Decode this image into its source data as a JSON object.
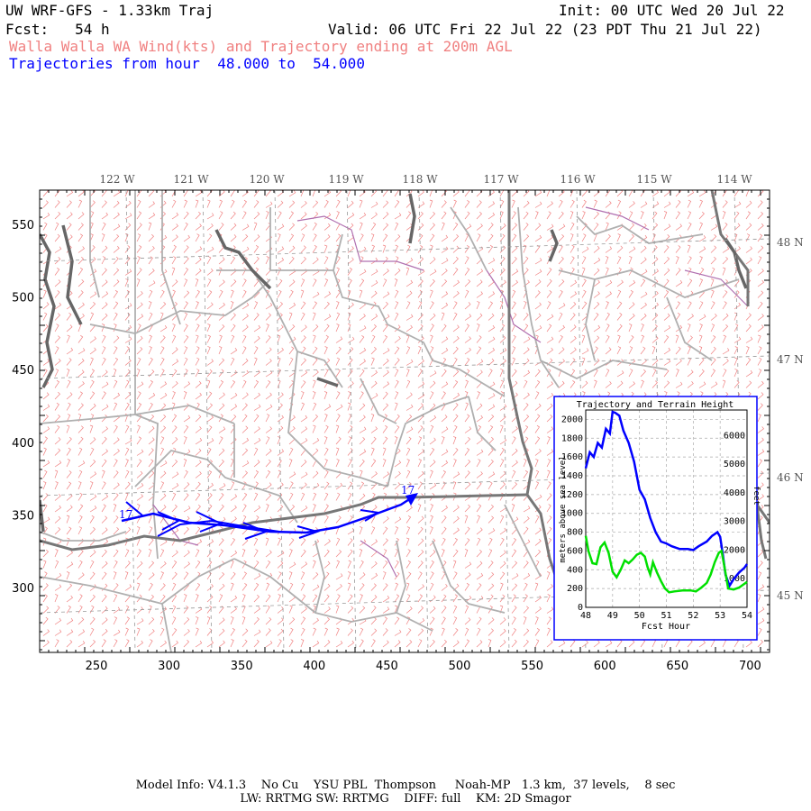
{
  "header": {
    "model_title": "UW WRF-GFS - 1.33km Traj",
    "init": "Init: 00 UTC Wed 20 Jul 22",
    "fcst": "Fcst:   54 h",
    "valid": "Valid: 06 UTC Fri 22 Jul 22 (23 PDT Thu 21 Jul 22)",
    "field_title": "Walla Walla WA Wind(kts) and Trajectory ending at 200m AGL",
    "traj_range": "Trajectories from hour  48.000 to  54.000"
  },
  "map": {
    "lon_labels": [
      "122 W",
      "121 W",
      "120 W",
      "119 W",
      "118 W",
      "117 W",
      "116 W",
      "115 W",
      "114 W"
    ],
    "lat_labels": [
      "48 N",
      "47 N",
      "46 N",
      "45 N"
    ],
    "x_ticks": [
      "250",
      "300",
      "350",
      "400",
      "450",
      "500",
      "550",
      "600",
      "650",
      "700"
    ],
    "y_ticks": [
      "550",
      "500",
      "450",
      "400",
      "350",
      "300"
    ],
    "traj_labels": [
      "17",
      "17"
    ],
    "colors": {
      "barbs": "#f08080",
      "traj": "#0000ff",
      "borders": "#777777",
      "counties": "#b0b0b0",
      "water": "#666666",
      "rivers": "#b070b0"
    }
  },
  "inset": {
    "title": "Trajectory and Terrain Height",
    "x_label": "Fcst Hour",
    "y_label_left": "meters above sea level",
    "y_label_right": "feet",
    "chart_data": {
      "type": "line",
      "title": "Trajectory and Terrain Height",
      "xlabel": "Fcst Hour",
      "ylabel": "meters above sea level",
      "xlim": [
        48,
        54
      ],
      "ylim": [
        0,
        2100
      ],
      "x_ticks": [
        "48",
        "49",
        "50",
        "51",
        "52",
        "53",
        "54"
      ],
      "y_ticks_left": [
        "0",
        "200",
        "400",
        "600",
        "800",
        "1000",
        "1200",
        "1400",
        "1600",
        "1800",
        "2000"
      ],
      "y_ticks_right": [
        "1000",
        "2000",
        "3000",
        "4000",
        "5000",
        "6000"
      ],
      "series": [
        {
          "color": "#0000ff",
          "x": [
            48,
            48.15,
            48.3,
            48.45,
            48.6,
            48.75,
            48.9,
            49.0,
            49.1,
            49.25,
            49.4,
            49.6,
            49.8,
            50.0,
            50.2,
            50.4,
            50.6,
            50.8,
            51.0,
            51.2,
            51.5,
            51.8,
            52.0,
            52.2,
            52.5,
            52.7,
            52.9,
            53.0,
            53.1,
            53.2,
            53.35,
            53.5,
            53.7,
            53.9,
            54.0
          ],
          "y": [
            1480,
            1650,
            1600,
            1750,
            1700,
            1900,
            1850,
            2080,
            2070,
            2040,
            1880,
            1750,
            1550,
            1250,
            1150,
            950,
            800,
            700,
            680,
            650,
            620,
            620,
            610,
            650,
            700,
            760,
            800,
            750,
            560,
            350,
            230,
            300,
            370,
            420,
            460
          ]
        },
        {
          "color": "#00e000",
          "x": [
            48,
            48.1,
            48.25,
            48.4,
            48.55,
            48.7,
            48.85,
            49.0,
            49.15,
            49.3,
            49.45,
            49.6,
            49.75,
            49.9,
            50.05,
            50.2,
            50.3,
            50.4,
            50.5,
            50.65,
            50.8,
            50.95,
            51.1,
            51.3,
            51.6,
            51.9,
            52.1,
            52.3,
            52.5,
            52.65,
            52.8,
            52.95,
            53.05,
            53.15,
            53.3,
            53.5,
            53.7,
            53.85,
            54.0
          ],
          "y": [
            760,
            600,
            470,
            460,
            640,
            690,
            580,
            380,
            320,
            400,
            500,
            470,
            510,
            560,
            580,
            540,
            430,
            350,
            480,
            370,
            280,
            200,
            160,
            170,
            180,
            180,
            170,
            210,
            260,
            350,
            480,
            580,
            600,
            450,
            200,
            190,
            210,
            240,
            270
          ]
        }
      ]
    }
  },
  "footer": {
    "line1": "Model Info: V4.1.3    No Cu    YSU PBL  Thompson     Noah-MP   1.3 km,  37 levels,    8 sec",
    "line2": "LW: RRTMG SW: RRTMG    DIFF: full    KM: 2D Smagor"
  }
}
